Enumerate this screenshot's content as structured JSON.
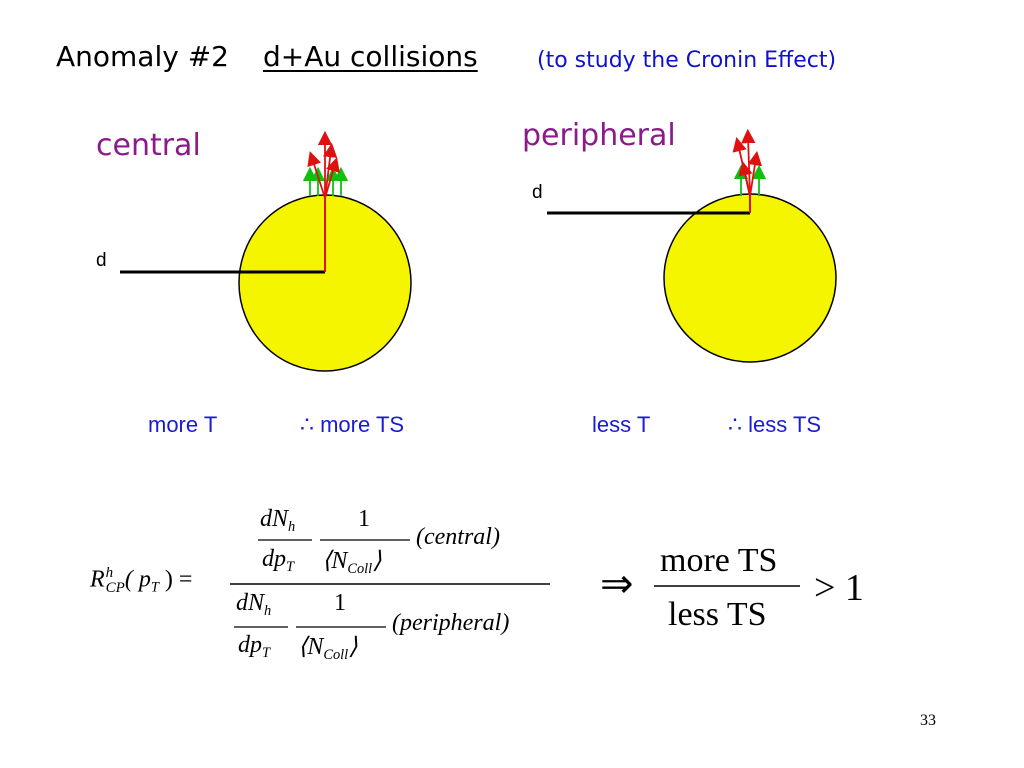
{
  "title": {
    "prefix": "Anomaly #2",
    "main": "d+Au collisions"
  },
  "subtitle": "(to study the Cronin Effect)",
  "panels": {
    "central": {
      "label": "central",
      "d_label": "d",
      "caption_left": "more  T",
      "caption_right": "∴ more TS"
    },
    "peripheral": {
      "label": "peripheral",
      "d_label": "d",
      "caption_left": "less  T",
      "caption_right": "∴ less TS"
    }
  },
  "colors": {
    "nucleus": "#f5f500",
    "arrow_red": "#e01010",
    "arrow_green": "#10c010",
    "purple": "#8a1c8a",
    "blue": "#1a1ad8"
  },
  "formula": {
    "lhs_R": "R",
    "lhs_sup": "h",
    "lhs_sub": "CP",
    "lhs_arg": "( p",
    "lhs_arg_sub": "T",
    "lhs_close": " ) =",
    "dN": "dN",
    "dN_sub": "h",
    "dp": "dp",
    "dp_sub": "T",
    "one": "1",
    "N": "N",
    "N_sub": "Coll",
    "central": "(central)",
    "peripheral": "(peripheral)"
  },
  "result": {
    "implies": "⇒",
    "numerator": "more TS",
    "denominator": "less TS",
    "comparison": "> 1"
  },
  "page_number": "33"
}
